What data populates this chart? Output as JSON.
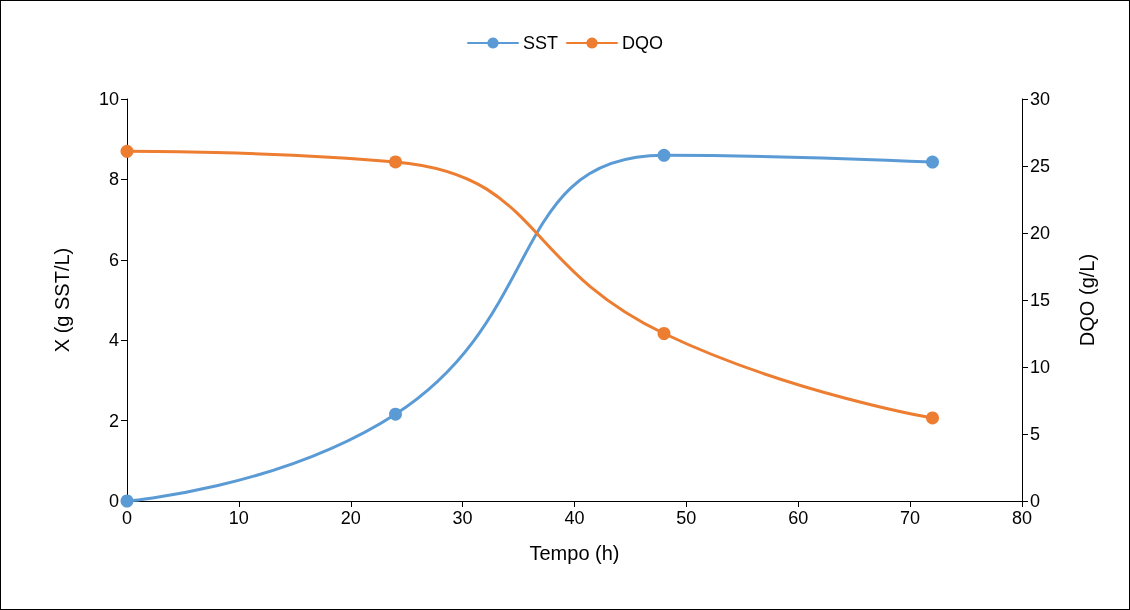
{
  "chart_data": {
    "type": "line",
    "xlabel": "Tempo (h)",
    "ylabel": "X (g SST/L)",
    "y2label": "DQO (g/L)",
    "x": [
      0,
      24,
      48,
      72
    ],
    "series": [
      {
        "name": "SST",
        "color": "#5b9bd5",
        "values": [
          0,
          2.16,
          8.6,
          8.43
        ]
      },
      {
        "name": "DQO",
        "color": "#ed7d31",
        "values": [
          26.1,
          25.3,
          12.5,
          6.2
        ],
        "axis": "y2"
      }
    ],
    "xlim": [
      0,
      80
    ],
    "xticks": [
      0,
      10,
      20,
      30,
      40,
      50,
      60,
      70,
      80
    ],
    "ylim": [
      0,
      10
    ],
    "yticks": [
      0,
      2,
      4,
      6,
      8,
      10
    ],
    "y2lim": [
      0,
      30
    ],
    "y2ticks": [
      0,
      5,
      10,
      15,
      20,
      25,
      30
    ],
    "grid": false,
    "legend": "top",
    "marker": "circle",
    "line_style": "solid"
  }
}
